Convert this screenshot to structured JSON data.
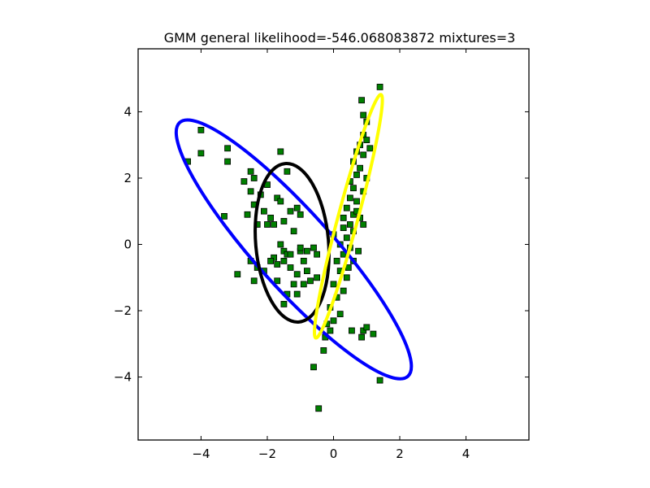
{
  "chart_data": {
    "type": "scatter",
    "title": "GMM general likelihood=-546.068083872 mixtures=3",
    "xlabel": "",
    "ylabel": "",
    "xlim": [
      -5.9,
      5.9
    ],
    "ylim": [
      -5.9,
      5.9
    ],
    "xticks": [
      -4,
      -2,
      0,
      2,
      4
    ],
    "yticks": [
      -4,
      -2,
      0,
      2,
      4
    ],
    "xtick_labels": [
      "−4",
      "−2",
      "0",
      "2",
      "4"
    ],
    "ytick_labels": [
      "−4",
      "−2",
      "0",
      "2",
      "4"
    ],
    "grid": false,
    "marker": {
      "shape": "square",
      "color": "#008000",
      "edge": "#000000"
    },
    "points": [
      [
        -4.0,
        3.45
      ],
      [
        -4.0,
        2.75
      ],
      [
        -4.4,
        2.5
      ],
      [
        -3.2,
        2.9
      ],
      [
        -3.2,
        2.5
      ],
      [
        -2.7,
        1.9
      ],
      [
        -2.5,
        2.2
      ],
      [
        -2.4,
        2.0
      ],
      [
        -2.5,
        1.6
      ],
      [
        -2.2,
        1.5
      ],
      [
        -2.1,
        1.0
      ],
      [
        -2.3,
        0.6
      ],
      [
        -2.0,
        0.6
      ],
      [
        -2.6,
        0.9
      ],
      [
        -2.4,
        1.2
      ],
      [
        -1.9,
        0.8
      ],
      [
        -1.8,
        0.6
      ],
      [
        -1.7,
        1.4
      ],
      [
        -1.6,
        1.3
      ],
      [
        -1.5,
        0.7
      ],
      [
        -1.3,
        1.0
      ],
      [
        -1.1,
        1.1
      ],
      [
        -1.0,
        0.9
      ],
      [
        -1.2,
        0.4
      ],
      [
        -2.0,
        1.8
      ],
      [
        -1.4,
        2.2
      ],
      [
        -1.6,
        2.8
      ],
      [
        -3.3,
        0.85
      ],
      [
        -2.5,
        -0.5
      ],
      [
        -2.3,
        -0.7
      ],
      [
        -2.9,
        -0.9
      ],
      [
        -2.4,
        -1.1
      ],
      [
        -1.6,
        0.0
      ],
      [
        -1.5,
        -0.2
      ],
      [
        -1.4,
        -0.3
      ],
      [
        -1.8,
        -0.4
      ],
      [
        -1.7,
        -0.6
      ],
      [
        -1.5,
        -0.5
      ],
      [
        -1.3,
        -0.7
      ],
      [
        -1.0,
        -0.2
      ],
      [
        -0.8,
        -0.2
      ],
      [
        -0.6,
        -0.1
      ],
      [
        -0.5,
        -0.3
      ],
      [
        -0.9,
        -0.5
      ],
      [
        -0.8,
        -0.8
      ],
      [
        -1.1,
        -0.9
      ],
      [
        -1.2,
        -1.2
      ],
      [
        -1.4,
        -1.5
      ],
      [
        -1.5,
        -1.8
      ],
      [
        -1.1,
        -1.5
      ],
      [
        -0.9,
        -1.2
      ],
      [
        -0.7,
        -1.1
      ],
      [
        -0.5,
        -1.0
      ],
      [
        -1.9,
        -0.5
      ],
      [
        -2.1,
        -0.8
      ],
      [
        -1.7,
        -1.1
      ],
      [
        -1.3,
        -0.3
      ],
      [
        -1.0,
        -0.1
      ],
      [
        0.85,
        4.35
      ],
      [
        1.4,
        4.75
      ],
      [
        0.9,
        3.9
      ],
      [
        1.0,
        3.7
      ],
      [
        0.9,
        3.3
      ],
      [
        1.0,
        3.15
      ],
      [
        0.8,
        3.0
      ],
      [
        0.7,
        2.8
      ],
      [
        1.1,
        2.9
      ],
      [
        0.9,
        2.7
      ],
      [
        0.6,
        2.5
      ],
      [
        0.8,
        2.3
      ],
      [
        0.7,
        2.1
      ],
      [
        1.0,
        2.0
      ],
      [
        0.5,
        1.9
      ],
      [
        0.6,
        1.7
      ],
      [
        0.9,
        1.6
      ],
      [
        0.5,
        1.4
      ],
      [
        0.7,
        1.3
      ],
      [
        0.4,
        1.1
      ],
      [
        0.6,
        0.9
      ],
      [
        0.8,
        0.8
      ],
      [
        0.5,
        0.6
      ],
      [
        0.3,
        0.5
      ],
      [
        0.6,
        0.4
      ],
      [
        0.9,
        0.6
      ],
      [
        0.4,
        0.2
      ],
      [
        0.2,
        0.0
      ],
      [
        0.5,
        -0.1
      ],
      [
        0.3,
        -0.3
      ],
      [
        0.6,
        -0.5
      ],
      [
        0.1,
        -0.5
      ],
      [
        0.2,
        -0.8
      ],
      [
        0.4,
        -1.0
      ],
      [
        0.0,
        -1.2
      ],
      [
        0.3,
        -1.4
      ],
      [
        0.1,
        -1.6
      ],
      [
        -0.1,
        -1.9
      ],
      [
        0.2,
        -2.1
      ],
      [
        0.0,
        -2.3
      ],
      [
        -0.2,
        -2.4
      ],
      [
        -0.1,
        -2.6
      ],
      [
        -0.25,
        -2.8
      ],
      [
        -0.3,
        -3.2
      ],
      [
        -0.6,
        -3.7
      ],
      [
        0.55,
        -2.6
      ],
      [
        0.9,
        -2.6
      ],
      [
        1.0,
        -2.5
      ],
      [
        1.2,
        -2.7
      ],
      [
        0.85,
        -2.8
      ],
      [
        -0.45,
        -4.95
      ],
      [
        1.4,
        -4.1
      ],
      [
        0.7,
        1.0
      ],
      [
        0.3,
        0.8
      ],
      [
        0.45,
        -0.7
      ],
      [
        0.75,
        -0.2
      ],
      [
        0.0,
        0.3
      ]
    ],
    "ellipses": [
      {
        "name": "component-1",
        "color": "#0000ff",
        "cx": -1.2,
        "cy": -0.15,
        "major_half": 5.15,
        "minor_half": 1.15,
        "angle_deg": -48
      },
      {
        "name": "component-2",
        "color": "#000000",
        "cx": -1.25,
        "cy": 0.05,
        "major_half": 2.4,
        "minor_half": 1.1,
        "angle_deg": 95
      },
      {
        "name": "component-3",
        "color": "#ffff00",
        "cx": 0.45,
        "cy": 0.85,
        "major_half": 3.8,
        "minor_half": 0.3,
        "angle_deg": 75
      }
    ]
  }
}
